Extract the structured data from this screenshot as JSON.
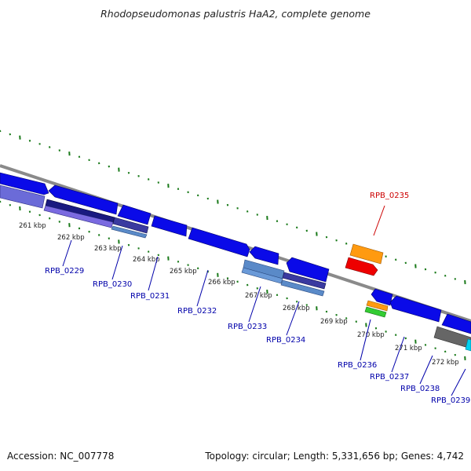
{
  "title": "Rhodopseudomonas palustris HaA2, complete genome",
  "footer": {
    "accession": "Accession: NC_007778",
    "topology": "Topology: circular; Length: 5,331,656 bp; Genes: 4,742"
  },
  "colors": {
    "backbone": "#808080",
    "tick": "#1a7a1a",
    "label_default": "#0000aa",
    "label_highlight": "#cc0000",
    "cds": "#0000ee",
    "orange": "#ff9900",
    "red": "#ee0000",
    "gray": "#666666",
    "cyan": "#00ccee"
  },
  "scale_labels": [
    "261 kbp",
    "262 kbp",
    "263 kbp",
    "264 kbp",
    "265 kbp",
    "266 kbp",
    "267 kbp",
    "268 kbp",
    "269 kbp",
    "270 kbp",
    "271 kbp",
    "272 kbp"
  ],
  "gene_labels": [
    {
      "text": "RPB_0229",
      "highlight": false
    },
    {
      "text": "RPB_0230",
      "highlight": false
    },
    {
      "text": "RPB_0231",
      "highlight": false
    },
    {
      "text": "RPB_0232",
      "highlight": false
    },
    {
      "text": "RPB_0233",
      "highlight": false
    },
    {
      "text": "RPB_0234",
      "highlight": false
    },
    {
      "text": "RPB_0235",
      "highlight": true
    },
    {
      "text": "RPB_0236",
      "highlight": false
    },
    {
      "text": "RPB_0237",
      "highlight": false
    },
    {
      "text": "RPB_0238",
      "highlight": false
    },
    {
      "text": "RPB_0239",
      "highlight": false
    }
  ]
}
